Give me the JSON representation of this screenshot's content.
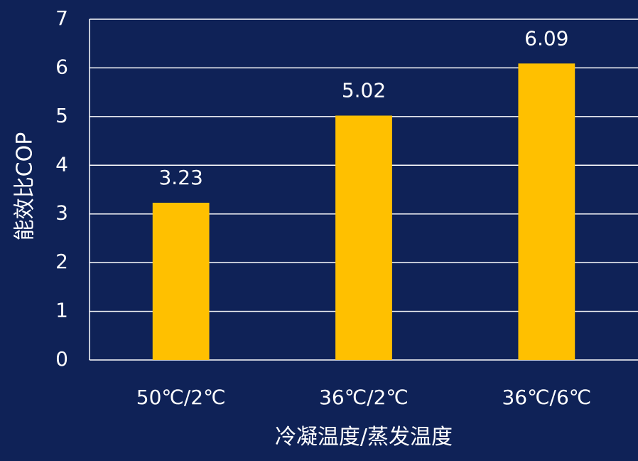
{
  "chart_data": {
    "type": "bar",
    "categories": [
      "50℃/2℃",
      "36℃/2℃",
      "36℃/6℃"
    ],
    "values": [
      3.23,
      5.02,
      6.09
    ],
    "data_labels": [
      "3.23",
      "5.02",
      "6.09"
    ],
    "title": "",
    "xlabel": "冷凝温度/蒸发温度",
    "ylabel": "能效比COP",
    "ylim": [
      0,
      7
    ],
    "yticks": [
      0,
      1,
      2,
      3,
      4,
      5,
      6,
      7
    ],
    "grid": true,
    "colors": {
      "background": "#0f2257",
      "bar": "#ffc000",
      "gridline": "#ffffff",
      "text": "#ffffff"
    }
  }
}
